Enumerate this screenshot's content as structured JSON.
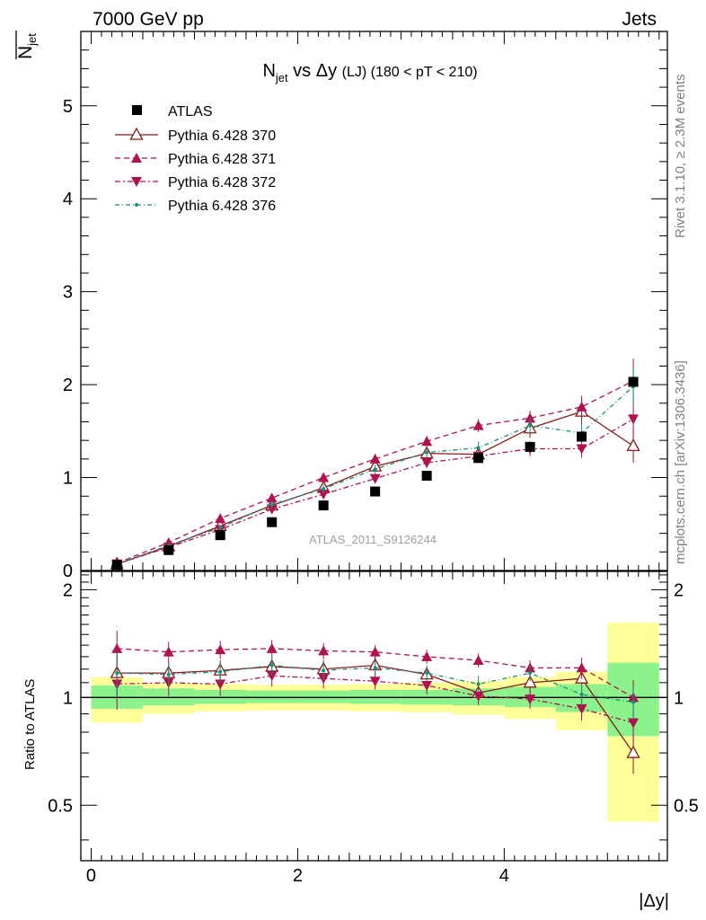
{
  "header": {
    "left": "7000 GeV pp",
    "right": "Jets"
  },
  "side_labels": {
    "rivet": "Rivet 3.1.10, ≥ 2.3M events",
    "mcplots": "mcplots.cern.ch [arXiv:1306.3436]"
  },
  "watermark": "ATLAS_2011_S9126244",
  "chart_data": {
    "type": "scatter",
    "title": {
      "main": "N",
      "sub": "jet",
      "mid": " vs Δy ",
      "lj": "(LJ)",
      "range": " (180 < pT < 210)"
    },
    "xlabel": "|Δy|",
    "ylabel": {
      "N": "N",
      "sub": "jet"
    },
    "ratio_ylabel": "Ratio to ATLAS",
    "xlim": [
      -0.1,
      5.58
    ],
    "ylim": [
      0,
      5.8
    ],
    "ratio_ylim": [
      0.35,
      2.25
    ],
    "x_ticks": [
      "0",
      "2",
      "4"
    ],
    "y_ticks": [
      "0",
      "1",
      "2",
      "3",
      "4",
      "5"
    ],
    "ratio_y_ticks": [
      "0.5",
      "1",
      "2"
    ],
    "legend_position": "top-left",
    "x": [
      0.25,
      0.75,
      1.25,
      1.75,
      2.25,
      2.75,
      3.25,
      3.75,
      4.25,
      4.75,
      5.25
    ],
    "bins": [
      [
        0,
        0.5
      ],
      [
        0.5,
        1
      ],
      [
        1,
        1.5
      ],
      [
        1.5,
        2
      ],
      [
        2,
        2.5
      ],
      [
        2.5,
        3
      ],
      [
        3,
        3.5
      ],
      [
        3.5,
        4
      ],
      [
        4,
        4.5
      ],
      [
        4.5,
        5
      ],
      [
        5,
        5.5
      ]
    ],
    "data": {
      "name": "ATLAS",
      "color": "#000000",
      "values": [
        0.06,
        0.22,
        0.38,
        0.52,
        0.7,
        0.85,
        1.02,
        1.21,
        1.33,
        1.44,
        2.03
      ],
      "band_green": [
        [
          0.93,
          1.08
        ],
        [
          0.95,
          1.06
        ],
        [
          0.96,
          1.05
        ],
        [
          0.965,
          1.045
        ],
        [
          0.965,
          1.045
        ],
        [
          0.96,
          1.05
        ],
        [
          0.955,
          1.05
        ],
        [
          0.95,
          1.06
        ],
        [
          0.94,
          1.07
        ],
        [
          0.91,
          1.09
        ],
        [
          0.78,
          1.25
        ]
      ],
      "band_yellow": [
        [
          0.85,
          1.14
        ],
        [
          0.9,
          1.1
        ],
        [
          0.915,
          1.09
        ],
        [
          0.92,
          1.085
        ],
        [
          0.92,
          1.085
        ],
        [
          0.915,
          1.09
        ],
        [
          0.91,
          1.1
        ],
        [
          0.895,
          1.11
        ],
        [
          0.87,
          1.14
        ],
        [
          0.81,
          1.18
        ],
        [
          0.45,
          1.62
        ]
      ]
    },
    "series": [
      {
        "name": "Pythia 6.428 370",
        "color": "#8b1a1a",
        "marker": "triangle-up-open",
        "dash": "",
        "values": [
          0.07,
          0.26,
          0.48,
          0.7,
          0.89,
          1.12,
          1.26,
          1.25,
          1.53,
          1.71,
          1.34
        ],
        "errors": [
          0.01,
          0.02,
          0.03,
          0.04,
          0.05,
          0.06,
          0.06,
          0.07,
          0.1,
          0.14,
          0.18
        ],
        "ratio": [
          1.17,
          1.17,
          1.19,
          1.22,
          1.2,
          1.23,
          1.16,
          1.03,
          1.1,
          1.13,
          0.7
        ]
      },
      {
        "name": "Pythia 6.428 371",
        "color": "#b0124f",
        "marker": "triangle-up",
        "dash": "6,4",
        "values": [
          0.08,
          0.3,
          0.56,
          0.78,
          1.0,
          1.2,
          1.39,
          1.56,
          1.64,
          1.76,
          2.04
        ],
        "errors": [
          0.01,
          0.02,
          0.03,
          0.04,
          0.05,
          0.05,
          0.06,
          0.07,
          0.08,
          0.12,
          0.24
        ],
        "ratio": [
          1.37,
          1.34,
          1.36,
          1.37,
          1.35,
          1.34,
          1.3,
          1.27,
          1.21,
          1.21,
          1.0
        ]
      },
      {
        "name": "Pythia 6.428 372",
        "color": "#b0124f",
        "marker": "triangle-down",
        "dash": "6,3,2,3",
        "values": [
          0.07,
          0.25,
          0.44,
          0.66,
          0.82,
          0.99,
          1.16,
          1.23,
          1.31,
          1.31,
          1.63
        ],
        "errors": [
          0.01,
          0.02,
          0.03,
          0.04,
          0.05,
          0.05,
          0.06,
          0.07,
          0.08,
          0.1,
          0.2
        ],
        "ratio": [
          1.09,
          1.1,
          1.09,
          1.15,
          1.13,
          1.11,
          1.08,
          1.01,
          0.99,
          0.93,
          0.85
        ]
      },
      {
        "name": "Pythia 6.428 376",
        "color": "#1a8f7a",
        "marker": "dot",
        "dash": "5,3,1,3",
        "values": [
          0.07,
          0.27,
          0.46,
          0.71,
          0.88,
          1.09,
          1.27,
          1.32,
          1.56,
          1.48,
          1.98
        ],
        "errors": [
          0.01,
          0.02,
          0.03,
          0.04,
          0.05,
          0.05,
          0.06,
          0.07,
          0.08,
          0.1,
          0.2
        ],
        "ratio": [
          1.17,
          1.16,
          1.18,
          1.23,
          1.19,
          1.21,
          1.17,
          1.09,
          1.17,
          1.02,
          0.97
        ]
      }
    ]
  }
}
